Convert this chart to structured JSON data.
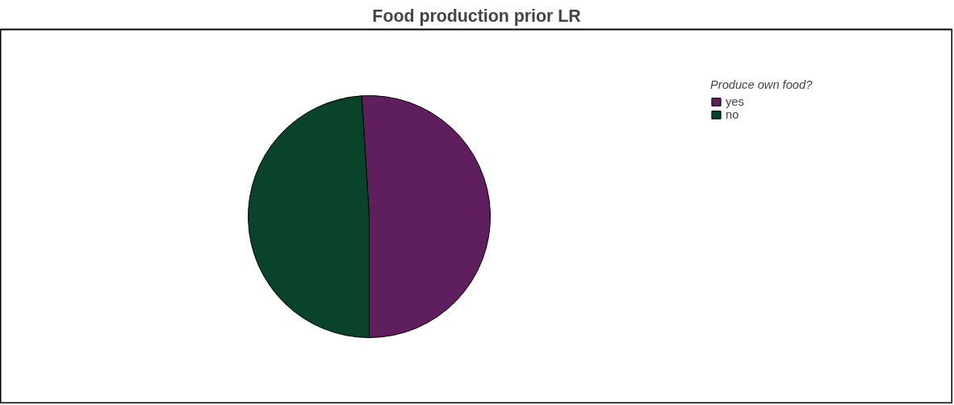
{
  "chart_data": {
    "type": "pie",
    "title": "Food production prior LR",
    "legend_title": "Produce own food?",
    "categories": [
      "yes",
      "no"
    ],
    "values": [
      51,
      49
    ],
    "colors": [
      "#5f1f5f",
      "#08432a"
    ],
    "legend": "top right"
  }
}
